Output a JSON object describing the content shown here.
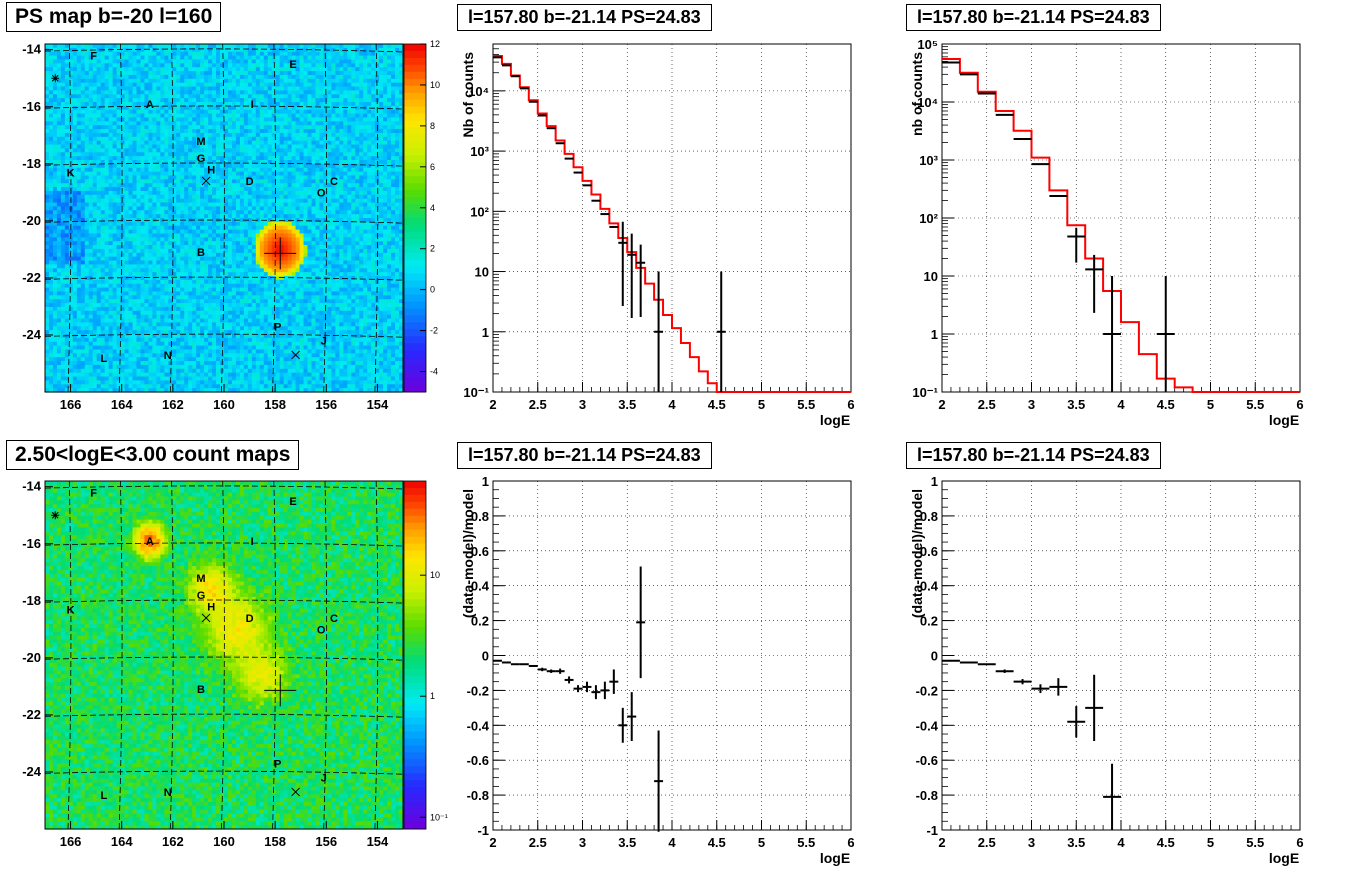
{
  "titles": {
    "ps_map": "PS map b=-20 l=160",
    "count_map": "2.50<logE<3.00 count maps",
    "spec_left": "l=157.80 b=-21.14 PS=24.83",
    "spec_right": "l=157.80 b=-21.14 PS=24.83",
    "res_left": "l=157.80 b=-21.14 PS=24.83",
    "res_right": "l=157.80 b=-21.14 PS=24.83"
  },
  "colors": {
    "model_line": "#ff0000",
    "data_points": "#000000",
    "grid": "#000000"
  },
  "chart_data": [
    {
      "id": "ps_map",
      "type": "heatmap",
      "title": "PS map b=-20 l=160",
      "xlim": [
        167,
        153
      ],
      "ylim": [
        -26,
        -13.8
      ],
      "x_ticks": [
        166,
        164,
        162,
        160,
        158,
        156,
        154
      ],
      "y_ticks": [
        -14,
        -16,
        -18,
        -20,
        -22,
        -24
      ],
      "colorbar": {
        "scale": "linear",
        "range": [
          -5,
          12
        ],
        "ticks": [
          -4,
          -2,
          0,
          2,
          4,
          6,
          8,
          10,
          12
        ]
      },
      "hotspots": [
        {
          "l": 157.8,
          "b": -21.0,
          "value": 12,
          "radius_deg": 0.75
        }
      ],
      "source_labels": [
        {
          "name": "F",
          "l": 165.1,
          "b": -14.2
        },
        {
          "name": "E",
          "l": 157.3,
          "b": -14.5
        },
        {
          "name": "A",
          "l": 162.9,
          "b": -15.9
        },
        {
          "name": "I",
          "l": 158.9,
          "b": -15.9
        },
        {
          "name": "M",
          "l": 160.9,
          "b": -17.2
        },
        {
          "name": "G",
          "l": 160.9,
          "b": -17.8
        },
        {
          "name": "H",
          "l": 160.5,
          "b": -18.2
        },
        {
          "name": "K",
          "l": 166.0,
          "b": -18.3
        },
        {
          "name": "D",
          "l": 159.0,
          "b": -18.6
        },
        {
          "name": "C",
          "l": 155.7,
          "b": -18.6
        },
        {
          "name": "O",
          "l": 156.2,
          "b": -19.0
        },
        {
          "name": "B",
          "l": 160.9,
          "b": -21.1
        },
        {
          "name": "P",
          "l": 157.9,
          "b": -23.7
        },
        {
          "name": "J",
          "l": 156.1,
          "b": -24.2
        },
        {
          "name": "L",
          "l": 164.7,
          "b": -24.8
        },
        {
          "name": "N",
          "l": 162.2,
          "b": -24.7
        }
      ],
      "markers": [
        {
          "symbol": "x",
          "l": 160.7,
          "b": -18.6
        },
        {
          "symbol": "x",
          "l": 157.2,
          "b": -24.7
        },
        {
          "symbol": "star",
          "l": 166.6,
          "b": -15.0
        },
        {
          "symbol": "cross",
          "l": 157.8,
          "b": -21.14
        }
      ]
    },
    {
      "id": "count_map",
      "type": "heatmap",
      "title": "2.50<logE<3.00 count maps",
      "xlim": [
        167,
        153
      ],
      "ylim": [
        -26,
        -13.8
      ],
      "x_ticks": [
        166,
        164,
        162,
        160,
        158,
        156,
        154
      ],
      "y_ticks": [
        -14,
        -16,
        -18,
        -20,
        -22,
        -24
      ],
      "colorbar": {
        "scale": "log",
        "range": [
          0.08,
          60
        ],
        "ticks": [
          0.1,
          1,
          10
        ],
        "tick_labels": [
          "10⁻¹",
          "1",
          "10"
        ]
      },
      "hotspots": [
        {
          "l": 162.9,
          "b": -15.9,
          "value": 30,
          "radius_deg": 0.45
        },
        {
          "l": 160.5,
          "b": -17.6,
          "value": 12,
          "radius_deg": 0.7
        },
        {
          "l": 159.5,
          "b": -19.0,
          "value": 10,
          "radius_deg": 1.0
        },
        {
          "l": 158.5,
          "b": -20.6,
          "value": 8,
          "radius_deg": 0.8
        }
      ],
      "source_labels": [
        {
          "name": "F",
          "l": 165.1,
          "b": -14.2
        },
        {
          "name": "E",
          "l": 157.3,
          "b": -14.5
        },
        {
          "name": "A",
          "l": 162.9,
          "b": -15.9
        },
        {
          "name": "I",
          "l": 158.9,
          "b": -15.9
        },
        {
          "name": "M",
          "l": 160.9,
          "b": -17.2
        },
        {
          "name": "G",
          "l": 160.9,
          "b": -17.8
        },
        {
          "name": "H",
          "l": 160.5,
          "b": -18.2
        },
        {
          "name": "K",
          "l": 166.0,
          "b": -18.3
        },
        {
          "name": "D",
          "l": 159.0,
          "b": -18.6
        },
        {
          "name": "C",
          "l": 155.7,
          "b": -18.6
        },
        {
          "name": "O",
          "l": 156.2,
          "b": -19.0
        },
        {
          "name": "B",
          "l": 160.9,
          "b": -21.1
        },
        {
          "name": "P",
          "l": 157.9,
          "b": -23.7
        },
        {
          "name": "J",
          "l": 156.1,
          "b": -24.2
        },
        {
          "name": "L",
          "l": 164.7,
          "b": -24.8
        },
        {
          "name": "N",
          "l": 162.2,
          "b": -24.7
        }
      ],
      "markers": [
        {
          "symbol": "x",
          "l": 160.7,
          "b": -18.6
        },
        {
          "symbol": "x",
          "l": 157.2,
          "b": -24.7
        },
        {
          "symbol": "star",
          "l": 166.6,
          "b": -15.0
        },
        {
          "symbol": "cross",
          "l": 157.8,
          "b": -21.14
        }
      ]
    },
    {
      "id": "spec_left",
      "type": "line",
      "title": "l=157.80 b=-21.14 PS=24.83",
      "xlabel": "logE",
      "ylabel": "Nb of counts",
      "xlim": [
        2,
        6
      ],
      "ylim": [
        0.1,
        60000
      ],
      "yscale": "log",
      "grid": true,
      "x_ticks": [
        2,
        2.5,
        3,
        3.5,
        4,
        4.5,
        5,
        5.5,
        6
      ],
      "y_ticks": [
        0.1,
        1,
        10,
        100,
        1000,
        10000
      ],
      "y_tick_labels": [
        "10⁻¹",
        "1",
        "10",
        "10²",
        "10³",
        "10⁴"
      ],
      "model": {
        "bin_width": 0.1,
        "bin_starts": [
          2.0,
          2.1,
          2.2,
          2.3,
          2.4,
          2.5,
          2.6,
          2.7,
          2.8,
          2.9,
          3.0,
          3.1,
          3.2,
          3.3,
          3.4,
          3.5,
          3.6,
          3.7,
          3.8,
          3.9,
          4.0,
          4.1,
          4.2,
          4.3,
          4.4,
          4.5,
          4.6,
          4.7,
          4.8,
          4.9,
          5.0,
          5.1,
          5.2,
          5.3,
          5.4,
          5.5,
          5.6,
          5.7,
          5.8,
          5.9
        ],
        "values": [
          38000,
          28000,
          18000,
          11500,
          7000,
          4200,
          2600,
          1500,
          900,
          540,
          320,
          190,
          110,
          63,
          36,
          21,
          11.5,
          6.3,
          3.4,
          1.9,
          1.15,
          0.65,
          0.38,
          0.22,
          0.14,
          0.1,
          0.1,
          0.1,
          0.1,
          0.1,
          0.1,
          0.1,
          0.1,
          0.1,
          0.1,
          0.1,
          0.1,
          0.1,
          0.1,
          0.1
        ]
      },
      "data": [
        {
          "x": 2.05,
          "y": 36000
        },
        {
          "x": 2.15,
          "y": 26500
        },
        {
          "x": 2.25,
          "y": 17500
        },
        {
          "x": 2.35,
          "y": 11000
        },
        {
          "x": 2.45,
          "y": 6600
        },
        {
          "x": 2.55,
          "y": 3900
        },
        {
          "x": 2.65,
          "y": 2400
        },
        {
          "x": 2.75,
          "y": 1350
        },
        {
          "x": 2.85,
          "y": 750
        },
        {
          "x": 2.95,
          "y": 440
        },
        {
          "x": 3.05,
          "y": 270
        },
        {
          "x": 3.15,
          "y": 150
        },
        {
          "x": 3.25,
          "y": 90
        },
        {
          "x": 3.35,
          "y": 55
        },
        {
          "x": 3.45,
          "y": 30,
          "err": 0.35
        },
        {
          "x": 3.55,
          "y": 19,
          "err": 0.35
        },
        {
          "x": 3.65,
          "y": 14,
          "err": 0.3
        },
        {
          "x": 3.85,
          "y": 1,
          "err": 1.0
        },
        {
          "x": 4.55,
          "y": 1,
          "err": 1.0
        }
      ]
    },
    {
      "id": "spec_right",
      "type": "line",
      "title": "l=157.80 b=-21.14 PS=24.83",
      "xlabel": "logE",
      "ylabel": "nb of counts",
      "xlim": [
        2,
        6
      ],
      "ylim": [
        0.1,
        100000
      ],
      "yscale": "log",
      "grid": true,
      "x_ticks": [
        2,
        2.5,
        3,
        3.5,
        4,
        4.5,
        5,
        5.5,
        6
      ],
      "y_ticks": [
        0.1,
        1,
        10,
        100,
        1000,
        10000,
        100000
      ],
      "y_tick_labels": [
        "10⁻¹",
        "1",
        "10",
        "10²",
        "10³",
        "10⁴",
        "10⁵"
      ],
      "model": {
        "bin_width": 0.2,
        "bin_starts": [
          2.0,
          2.2,
          2.4,
          2.6,
          2.8,
          3.0,
          3.2,
          3.4,
          3.6,
          3.8,
          4.0,
          4.2,
          4.4,
          4.6,
          4.8,
          5.0,
          5.2,
          5.4,
          5.6,
          5.8
        ],
        "values": [
          55000,
          32000,
          15000,
          7000,
          3200,
          1100,
          300,
          75,
          20,
          5.5,
          1.6,
          0.45,
          0.17,
          0.12,
          0.1,
          0.1,
          0.1,
          0.1,
          0.1,
          0.1
        ]
      },
      "data": [
        {
          "x": 2.1,
          "y": 48000
        },
        {
          "x": 2.3,
          "y": 30000
        },
        {
          "x": 2.5,
          "y": 14000
        },
        {
          "x": 2.7,
          "y": 6000
        },
        {
          "x": 2.9,
          "y": 2300
        },
        {
          "x": 3.1,
          "y": 850
        },
        {
          "x": 3.3,
          "y": 240
        },
        {
          "x": 3.5,
          "y": 48,
          "err": 0.15
        },
        {
          "x": 3.7,
          "y": 13,
          "err": 0.25
        },
        {
          "x": 3.9,
          "y": 1,
          "err": 1.0
        },
        {
          "x": 4.5,
          "y": 1,
          "err": 1.0
        }
      ]
    },
    {
      "id": "res_left",
      "type": "scatter",
      "title": "l=157.80 b=-21.14 PS=24.83",
      "xlabel": "logE",
      "ylabel": "(data-model)/model",
      "xlim": [
        2,
        6
      ],
      "ylim": [
        -1,
        1
      ],
      "grid": true,
      "x_ticks": [
        2,
        2.5,
        3,
        3.5,
        4,
        4.5,
        5,
        5.5,
        6
      ],
      "y_ticks": [
        -1,
        -0.8,
        -0.6,
        -0.4,
        -0.2,
        0,
        0.2,
        0.4,
        0.6,
        0.8,
        1
      ],
      "xerr": 0.05,
      "data": [
        {
          "x": 2.05,
          "y": -0.03,
          "err": 0.0
        },
        {
          "x": 2.15,
          "y": -0.04,
          "err": 0.0
        },
        {
          "x": 2.25,
          "y": -0.05,
          "err": 0.0
        },
        {
          "x": 2.35,
          "y": -0.05,
          "err": 0.0
        },
        {
          "x": 2.45,
          "y": -0.06,
          "err": 0.0
        },
        {
          "x": 2.55,
          "y": -0.08,
          "err": 0.01
        },
        {
          "x": 2.65,
          "y": -0.09,
          "err": 0.01
        },
        {
          "x": 2.75,
          "y": -0.09,
          "err": 0.015
        },
        {
          "x": 2.85,
          "y": -0.14,
          "err": 0.02
        },
        {
          "x": 2.95,
          "y": -0.19,
          "err": 0.02
        },
        {
          "x": 3.05,
          "y": -0.18,
          "err": 0.03
        },
        {
          "x": 3.15,
          "y": -0.21,
          "err": 0.04
        },
        {
          "x": 3.25,
          "y": -0.2,
          "err": 0.05
        },
        {
          "x": 3.35,
          "y": -0.15,
          "err": 0.07
        },
        {
          "x": 3.45,
          "y": -0.4,
          "err": 0.1
        },
        {
          "x": 3.55,
          "y": -0.35,
          "err": 0.14
        },
        {
          "x": 3.65,
          "y": 0.19,
          "err": 0.32
        },
        {
          "x": 3.85,
          "y": -0.72,
          "err": 0.29
        }
      ]
    },
    {
      "id": "res_right",
      "type": "scatter",
      "title": "l=157.80 b=-21.14 PS=24.83",
      "xlabel": "logE",
      "ylabel": "(data-model)/model",
      "xlim": [
        2,
        6
      ],
      "ylim": [
        -1,
        1
      ],
      "grid": true,
      "x_ticks": [
        2,
        2.5,
        3,
        3.5,
        4,
        4.5,
        5,
        5.5,
        6
      ],
      "y_ticks": [
        -1,
        -0.8,
        -0.6,
        -0.4,
        -0.2,
        0,
        0.2,
        0.4,
        0.6,
        0.8,
        1
      ],
      "xerr": 0.1,
      "data": [
        {
          "x": 2.1,
          "y": -0.03,
          "err": 0.0
        },
        {
          "x": 2.3,
          "y": -0.04,
          "err": 0.0
        },
        {
          "x": 2.5,
          "y": -0.05,
          "err": 0.0
        },
        {
          "x": 2.7,
          "y": -0.09,
          "err": 0.01
        },
        {
          "x": 2.9,
          "y": -0.15,
          "err": 0.015
        },
        {
          "x": 3.1,
          "y": -0.19,
          "err": 0.025
        },
        {
          "x": 3.3,
          "y": -0.18,
          "err": 0.05
        },
        {
          "x": 3.5,
          "y": -0.38,
          "err": 0.09
        },
        {
          "x": 3.7,
          "y": -0.3,
          "err": 0.19
        },
        {
          "x": 3.9,
          "y": -0.81,
          "err": 0.19
        }
      ]
    }
  ]
}
